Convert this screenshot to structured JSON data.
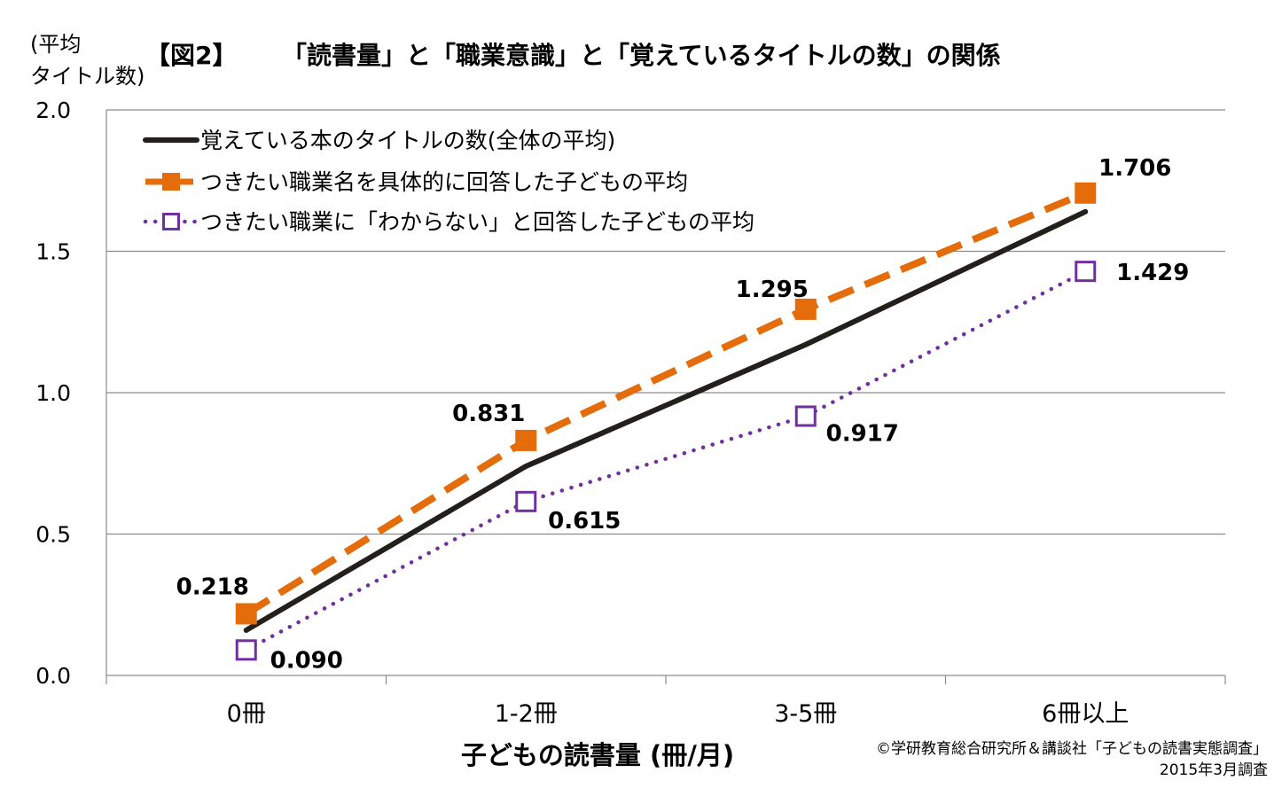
{
  "header": {
    "ylabel_line1": "(平均",
    "ylabel_line2": "タイトル数)",
    "figure_label": "【図2】",
    "title": "「読書量」と「職業意識」と「覚えているタイトルの数」の関係"
  },
  "chart_data": {
    "type": "line",
    "xlabel": "子どもの読書量 (冊/月)",
    "categories": [
      "0冊",
      "1-2冊",
      "3-5冊",
      "6冊以上"
    ],
    "ylim": [
      0,
      2
    ],
    "yticks": [
      "0.0",
      "0.5",
      "1.0",
      "1.5",
      "2.0"
    ],
    "grid": true,
    "legend_position": "top-left",
    "series": [
      {
        "name": "覚えている本のタイトルの数(全体の平均)",
        "values": [
          0.16,
          0.74,
          1.17,
          1.64
        ],
        "color": "#231f1a",
        "style": "solid",
        "marker": "none",
        "labels": [
          "",
          "",
          "",
          ""
        ]
      },
      {
        "name": "つきたい職業名を具体的に回答した子どもの平均",
        "values": [
          0.218,
          0.831,
          1.295,
          1.706
        ],
        "color": "#e46c0a",
        "style": "dashed",
        "marker": "square-filled",
        "labels": [
          "0.218",
          "0.831",
          "1.295",
          "1.706"
        ]
      },
      {
        "name": "つきたい職業に「わからない」と回答した子どもの平均",
        "values": [
          0.09,
          0.615,
          0.917,
          1.429
        ],
        "color": "#7030a0",
        "style": "dotted",
        "marker": "square-open",
        "labels": [
          "0.090",
          "0.615",
          "0.917",
          "1.429"
        ]
      }
    ]
  },
  "footer": {
    "source": "©学研教育総合研究所＆講談社「子どもの読書実態調査」",
    "date": "2015年3月調査"
  }
}
